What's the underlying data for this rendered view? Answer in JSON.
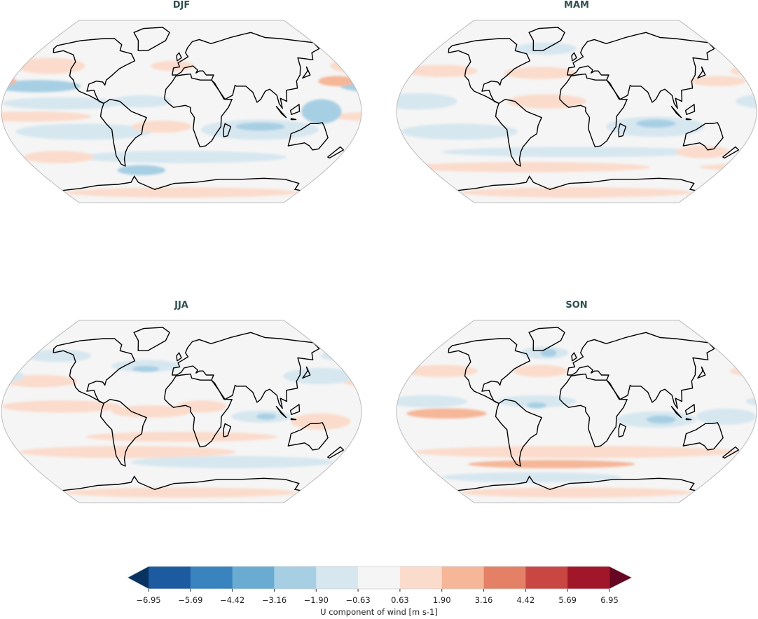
{
  "panels": [
    {
      "title": "DJF"
    },
    {
      "title": "MAM"
    },
    {
      "title": "JJA"
    },
    {
      "title": "SON"
    }
  ],
  "colorbar": {
    "label": "U component of wind [m s-1]",
    "ticks": [
      "−6.95",
      "−5.69",
      "−4.42",
      "−3.16",
      "−1.90",
      "−0.63",
      "0.63",
      "1.90",
      "3.16",
      "4.42",
      "5.69",
      "6.95"
    ],
    "colors": [
      "#1c5ba0",
      "#3983bf",
      "#6aacd1",
      "#a7cfe4",
      "#d7e7f0",
      "#f5f5f5",
      "#fbdccc",
      "#f6b698",
      "#e38066",
      "#c84742",
      "#a2162a"
    ],
    "under_color": "#08325f",
    "over_color": "#660622",
    "extend": "both"
  },
  "projection": "Robinson",
  "colormap": "RdBu_r"
}
